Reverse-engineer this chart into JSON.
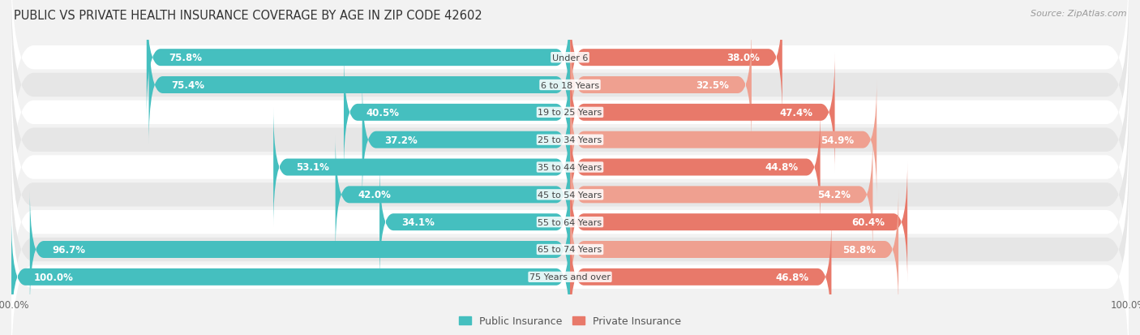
{
  "title": "PUBLIC VS PRIVATE HEALTH INSURANCE COVERAGE BY AGE IN ZIP CODE 42602",
  "source": "Source: ZipAtlas.com",
  "categories": [
    "Under 6",
    "6 to 18 Years",
    "19 to 25 Years",
    "25 to 34 Years",
    "35 to 44 Years",
    "45 to 54 Years",
    "55 to 64 Years",
    "65 to 74 Years",
    "75 Years and over"
  ],
  "public_values": [
    75.8,
    75.4,
    40.5,
    37.2,
    53.1,
    42.0,
    34.1,
    96.7,
    100.0
  ],
  "private_values": [
    38.0,
    32.5,
    47.4,
    54.9,
    44.8,
    54.2,
    60.4,
    58.8,
    46.8
  ],
  "public_color": "#45BFBF",
  "private_color": "#E8796A",
  "private_color_light": "#EFA090",
  "bg_color": "#F2F2F2",
  "row_bg_even": "#FFFFFF",
  "row_bg_odd": "#E6E6E6",
  "max_value": 100.0,
  "bar_height": 0.62,
  "title_fontsize": 10.5,
  "label_fontsize": 8.5,
  "tick_fontsize": 8.5,
  "legend_fontsize": 9,
  "source_fontsize": 8
}
